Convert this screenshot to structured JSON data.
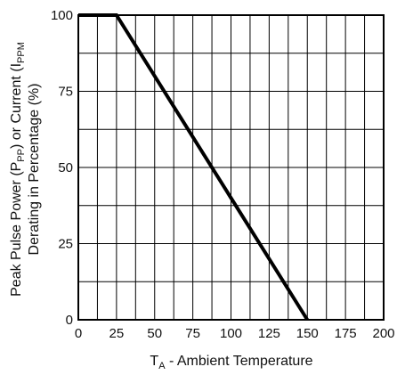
{
  "chart_data": {
    "type": "line",
    "xlabel": {
      "main": "T",
      "sub": "A",
      "rest": " - Ambient Temperature"
    },
    "ylabel": {
      "line1_prefix": "Peak Pulse Power (P",
      "line1_sub1": "PP",
      "line1_mid": ") or Current (I",
      "line1_sub2": "PPM",
      "line2": "Derating in Percentage (%)"
    },
    "xlim": [
      0,
      200
    ],
    "ylim": [
      0,
      100
    ],
    "x_ticks": [
      0,
      25,
      50,
      75,
      100,
      125,
      150,
      175,
      200
    ],
    "y_ticks": [
      0,
      25,
      50,
      75,
      100
    ],
    "x_grid": [
      0,
      12.5,
      25,
      37.5,
      50,
      62.5,
      75,
      87.5,
      100,
      112.5,
      125,
      137.5,
      150,
      162.5,
      175,
      187.5,
      200
    ],
    "y_grid": [
      0,
      12.5,
      25,
      37.5,
      50,
      62.5,
      75,
      87.5,
      100
    ],
    "grid": true,
    "series": [
      {
        "x": [
          0,
          25,
          150
        ],
        "y": [
          100,
          100,
          0
        ]
      }
    ],
    "colors": {
      "line": "#000000",
      "grid": "#000000"
    }
  }
}
